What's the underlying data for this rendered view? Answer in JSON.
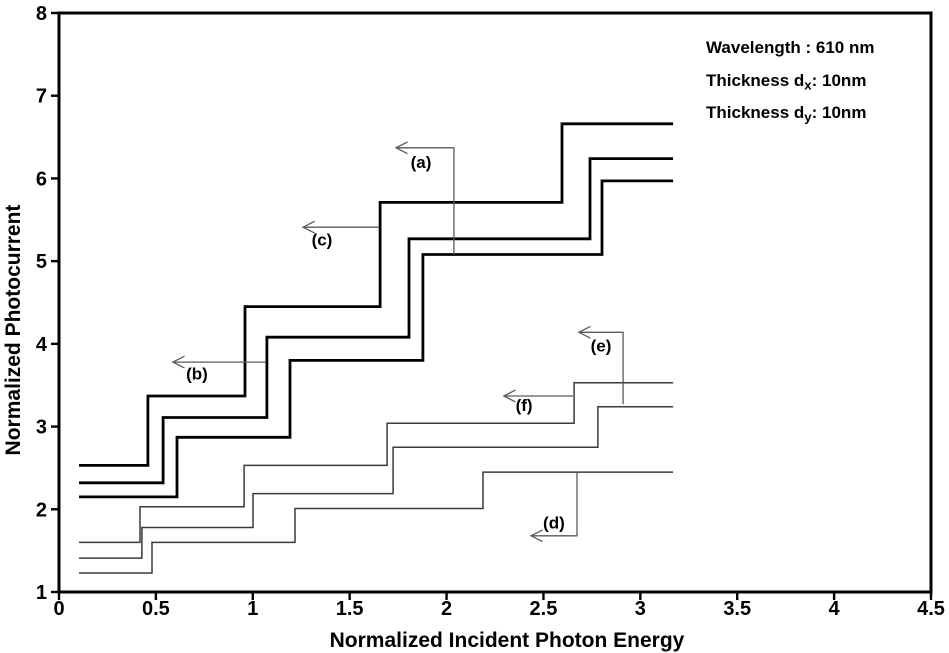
{
  "info_panel": {
    "lines": [
      {
        "prefix": "Wavelength : 610 nm",
        "sub": "",
        "suffix": ""
      },
      {
        "prefix": "Thickness d",
        "sub": "x",
        "suffix": ": 10nm"
      },
      {
        "prefix": "Thickness d",
        "sub": "y",
        "suffix": ": 10nm"
      }
    ]
  },
  "chart_data": {
    "type": "line",
    "subtype": "staircase-step",
    "title": "",
    "xlabel": "Normalized Incident Photon Energy",
    "ylabel": "Normalized Photocurrent",
    "xlim": [
      0,
      4.5
    ],
    "ylim": [
      1,
      8
    ],
    "grid": false,
    "legend_position": "none",
    "x_ticks": [
      {
        "value": 0,
        "label": "0"
      },
      {
        "value": 0.5,
        "label": "0.5"
      },
      {
        "value": 1,
        "label": "1"
      },
      {
        "value": 1.5,
        "label": "1.5"
      },
      {
        "value": 2,
        "label": "2"
      },
      {
        "value": 2.5,
        "label": "2.5"
      },
      {
        "value": 3,
        "label": "3"
      },
      {
        "value": 3.5,
        "label": "3.5"
      },
      {
        "value": 4,
        "label": "4"
      },
      {
        "value": 4.5,
        "label": "4.5"
      }
    ],
    "y_ticks": [
      {
        "value": 1,
        "label": "1"
      },
      {
        "value": 2,
        "label": "2"
      },
      {
        "value": 3,
        "label": "3"
      },
      {
        "value": 4,
        "label": "4"
      },
      {
        "value": 5,
        "label": "5"
      },
      {
        "value": 6,
        "label": "6"
      },
      {
        "value": 7,
        "label": "7"
      },
      {
        "value": 8,
        "label": "8"
      }
    ],
    "series": [
      {
        "name": "c",
        "label": "(c)",
        "style": "thick",
        "points": [
          [
            0.103,
            2.53
          ],
          [
            0.459,
            2.53
          ],
          [
            0.459,
            3.37
          ],
          [
            0.96,
            3.37
          ],
          [
            0.96,
            4.45
          ],
          [
            1.657,
            4.45
          ],
          [
            1.657,
            5.71
          ],
          [
            2.596,
            5.71
          ],
          [
            2.596,
            6.66
          ],
          [
            3.169,
            6.66
          ]
        ]
      },
      {
        "name": "b",
        "label": "(b)",
        "style": "thick",
        "points": [
          [
            0.103,
            2.32
          ],
          [
            0.537,
            2.32
          ],
          [
            0.537,
            3.11
          ],
          [
            1.073,
            3.11
          ],
          [
            1.073,
            4.08
          ],
          [
            1.806,
            4.08
          ],
          [
            1.806,
            5.27
          ],
          [
            2.74,
            5.27
          ],
          [
            2.74,
            6.24
          ],
          [
            3.169,
            6.24
          ]
        ]
      },
      {
        "name": "a",
        "label": "(a)",
        "style": "thick",
        "points": [
          [
            0.103,
            2.15
          ],
          [
            0.609,
            2.15
          ],
          [
            0.609,
            2.87
          ],
          [
            1.192,
            2.87
          ],
          [
            1.192,
            3.8
          ],
          [
            1.878,
            3.8
          ],
          [
            1.878,
            5.08
          ],
          [
            2.802,
            5.08
          ],
          [
            2.802,
            5.97
          ],
          [
            3.169,
            5.97
          ]
        ]
      },
      {
        "name": "f",
        "label": "(f)",
        "style": "thin",
        "points": [
          [
            0.103,
            1.6
          ],
          [
            0.418,
            1.6
          ],
          [
            0.418,
            2.03
          ],
          [
            0.955,
            2.03
          ],
          [
            0.955,
            2.53
          ],
          [
            1.693,
            2.53
          ],
          [
            1.693,
            3.04
          ],
          [
            2.658,
            3.04
          ],
          [
            2.658,
            3.53
          ],
          [
            3.169,
            3.53
          ]
        ]
      },
      {
        "name": "e",
        "label": "(e)",
        "style": "thin",
        "points": [
          [
            0.103,
            1.41
          ],
          [
            0.428,
            1.41
          ],
          [
            0.428,
            1.78
          ],
          [
            1.001,
            1.78
          ],
          [
            1.001,
            2.19
          ],
          [
            1.724,
            2.19
          ],
          [
            1.724,
            2.75
          ],
          [
            2.781,
            2.75
          ],
          [
            2.781,
            3.24
          ],
          [
            3.169,
            3.24
          ]
        ]
      },
      {
        "name": "d",
        "label": "(d)",
        "style": "thin",
        "points": [
          [
            0.103,
            1.23
          ],
          [
            0.48,
            1.23
          ],
          [
            0.48,
            1.6
          ],
          [
            1.218,
            1.6
          ],
          [
            1.218,
            2.01
          ],
          [
            2.188,
            2.01
          ],
          [
            2.188,
            2.45
          ],
          [
            3.169,
            2.45
          ]
        ]
      }
    ],
    "annotations": [
      {
        "label": "(a)",
        "text_pos": [
          1.868,
          6.2
        ],
        "arrow": [
          [
            1.739,
            6.37
          ],
          [
            2.038,
            6.37
          ],
          [
            2.038,
            5.08
          ]
        ]
      },
      {
        "label": "(b)",
        "text_pos": [
          0.712,
          3.64
        ],
        "arrow": [
          [
            0.588,
            3.78
          ],
          [
            1.068,
            3.78
          ]
        ]
      },
      {
        "label": "(c)",
        "text_pos": [
          1.357,
          5.26
        ],
        "arrow": [
          [
            1.259,
            5.41
          ],
          [
            1.651,
            5.41
          ]
        ]
      },
      {
        "label": "(d)",
        "text_pos": [
          2.554,
          1.84
        ],
        "arrow": [
          [
            2.436,
            1.68
          ],
          [
            2.673,
            1.68
          ],
          [
            2.673,
            2.44
          ]
        ]
      },
      {
        "label": "(e)",
        "text_pos": [
          2.797,
          3.98
        ],
        "arrow": [
          [
            2.683,
            4.14
          ],
          [
            2.911,
            4.14
          ],
          [
            2.911,
            3.27
          ]
        ]
      },
      {
        "label": "(f)",
        "text_pos": [
          2.4,
          3.26
        ],
        "arrow": [
          [
            2.296,
            3.37
          ],
          [
            2.652,
            3.37
          ]
        ]
      }
    ],
    "colors": {
      "thick_curve": "#000000",
      "thin_curve": "#3a3a3a",
      "pointer_line": "#5a5a5a",
      "axis": "#000000",
      "text": "#000000",
      "background": "#ffffff"
    }
  }
}
